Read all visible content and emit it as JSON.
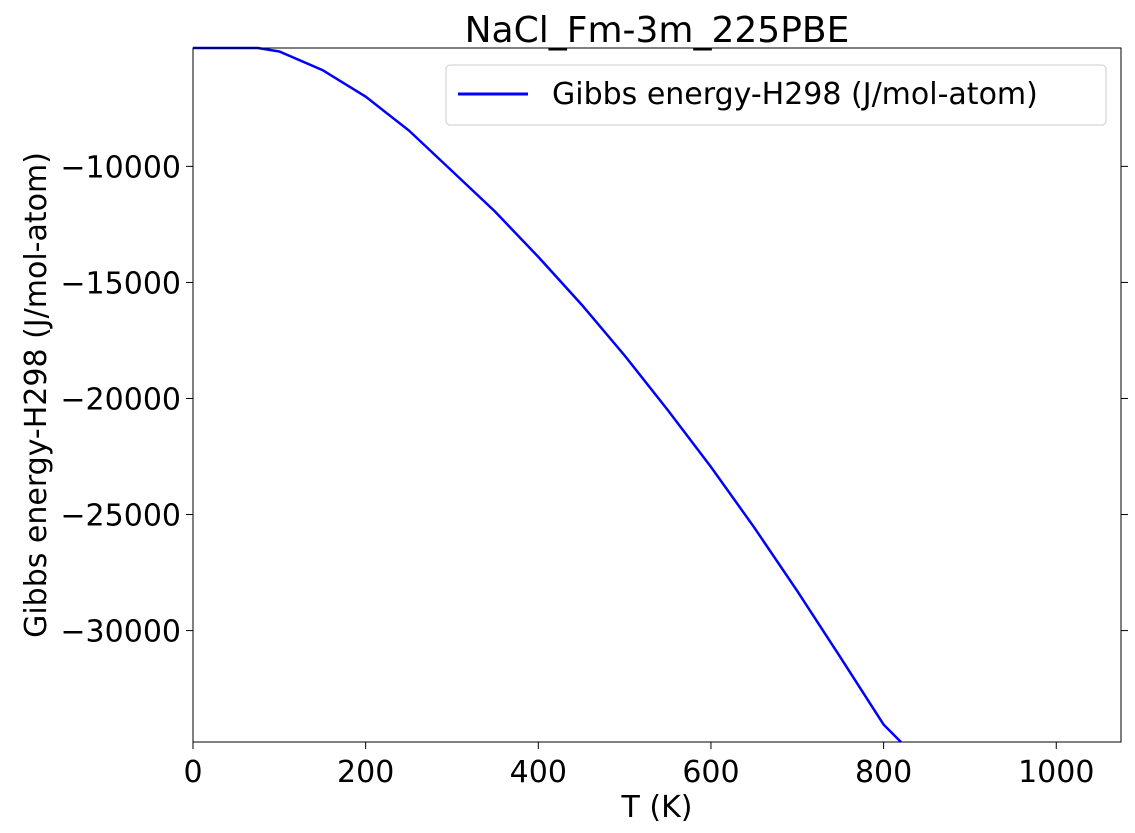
{
  "chart_data": {
    "type": "line",
    "title": "NaCl_Fm-3m_225PBE",
    "xlabel": "T (K)",
    "ylabel": "Gibbs energy-H298 (J/mol-atom)",
    "xlim": [
      0,
      1075
    ],
    "ylim": [
      -34800,
      -4900
    ],
    "xticks": [
      0,
      200,
      400,
      600,
      800,
      1000
    ],
    "xtick_labels": [
      "0",
      "200",
      "400",
      "600",
      "800",
      "1000"
    ],
    "yticks": [
      -10000,
      -15000,
      -20000,
      -25000,
      -30000
    ],
    "ytick_labels": [
      "−10000",
      "−15000",
      "−20000",
      "−25000",
      "−30000"
    ],
    "grid": false,
    "legend_position": "top-right",
    "series": [
      {
        "name": "Gibbs energy-H298 (J/mol-atom)",
        "color": "#0000ff",
        "x": [
          0,
          75,
          100,
          150,
          200,
          250,
          300,
          350,
          400,
          450,
          500,
          550,
          600,
          650,
          700,
          750,
          800,
          820
        ],
        "y": [
          -4900,
          -4900,
          -5050,
          -5850,
          -7000,
          -8450,
          -10200,
          -11950,
          -13900,
          -15950,
          -18150,
          -20500,
          -22950,
          -25550,
          -28300,
          -31150,
          -34050,
          -34800
        ]
      }
    ]
  }
}
